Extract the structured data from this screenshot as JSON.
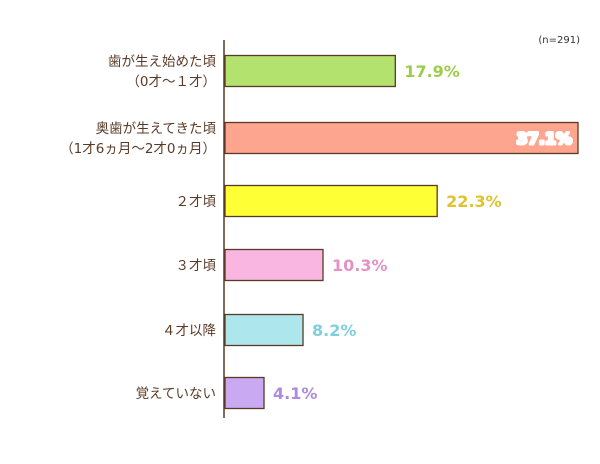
{
  "chart_data": {
    "type": "bar",
    "orientation": "horizontal",
    "note": "(n=291)",
    "categories": [
      [
        "歯が生え始めた頃",
        "（0才〜１才）"
      ],
      [
        "奥歯が生えてきた頃",
        "（1才6ヵ月〜2才0ヵ月）"
      ],
      [
        "２才頃"
      ],
      [
        "３才頃"
      ],
      [
        "４才以降"
      ],
      [
        "覚えていない"
      ]
    ],
    "values": [
      17.9,
      37.1,
      22.3,
      10.3,
      8.2,
      4.1
    ],
    "value_labels": [
      "17.9%",
      "37.1%",
      "22.3%",
      "10.3%",
      "8.2%",
      "4.1%"
    ],
    "unit": "%",
    "xlim": [
      0,
      37.1
    ],
    "grid": false,
    "legend": "none",
    "bar_colors": [
      "#b3e26e",
      "#fda58e",
      "#ffff36",
      "#f8b6e0",
      "#ade6ec",
      "#c9a9f1"
    ],
    "label_colors": [
      "#9ccd4a",
      "#ffffff",
      "#ddc32e",
      "#e591c6",
      "#7fd0dc",
      "#ab8be0"
    ],
    "text_color": "#5a3a26"
  }
}
